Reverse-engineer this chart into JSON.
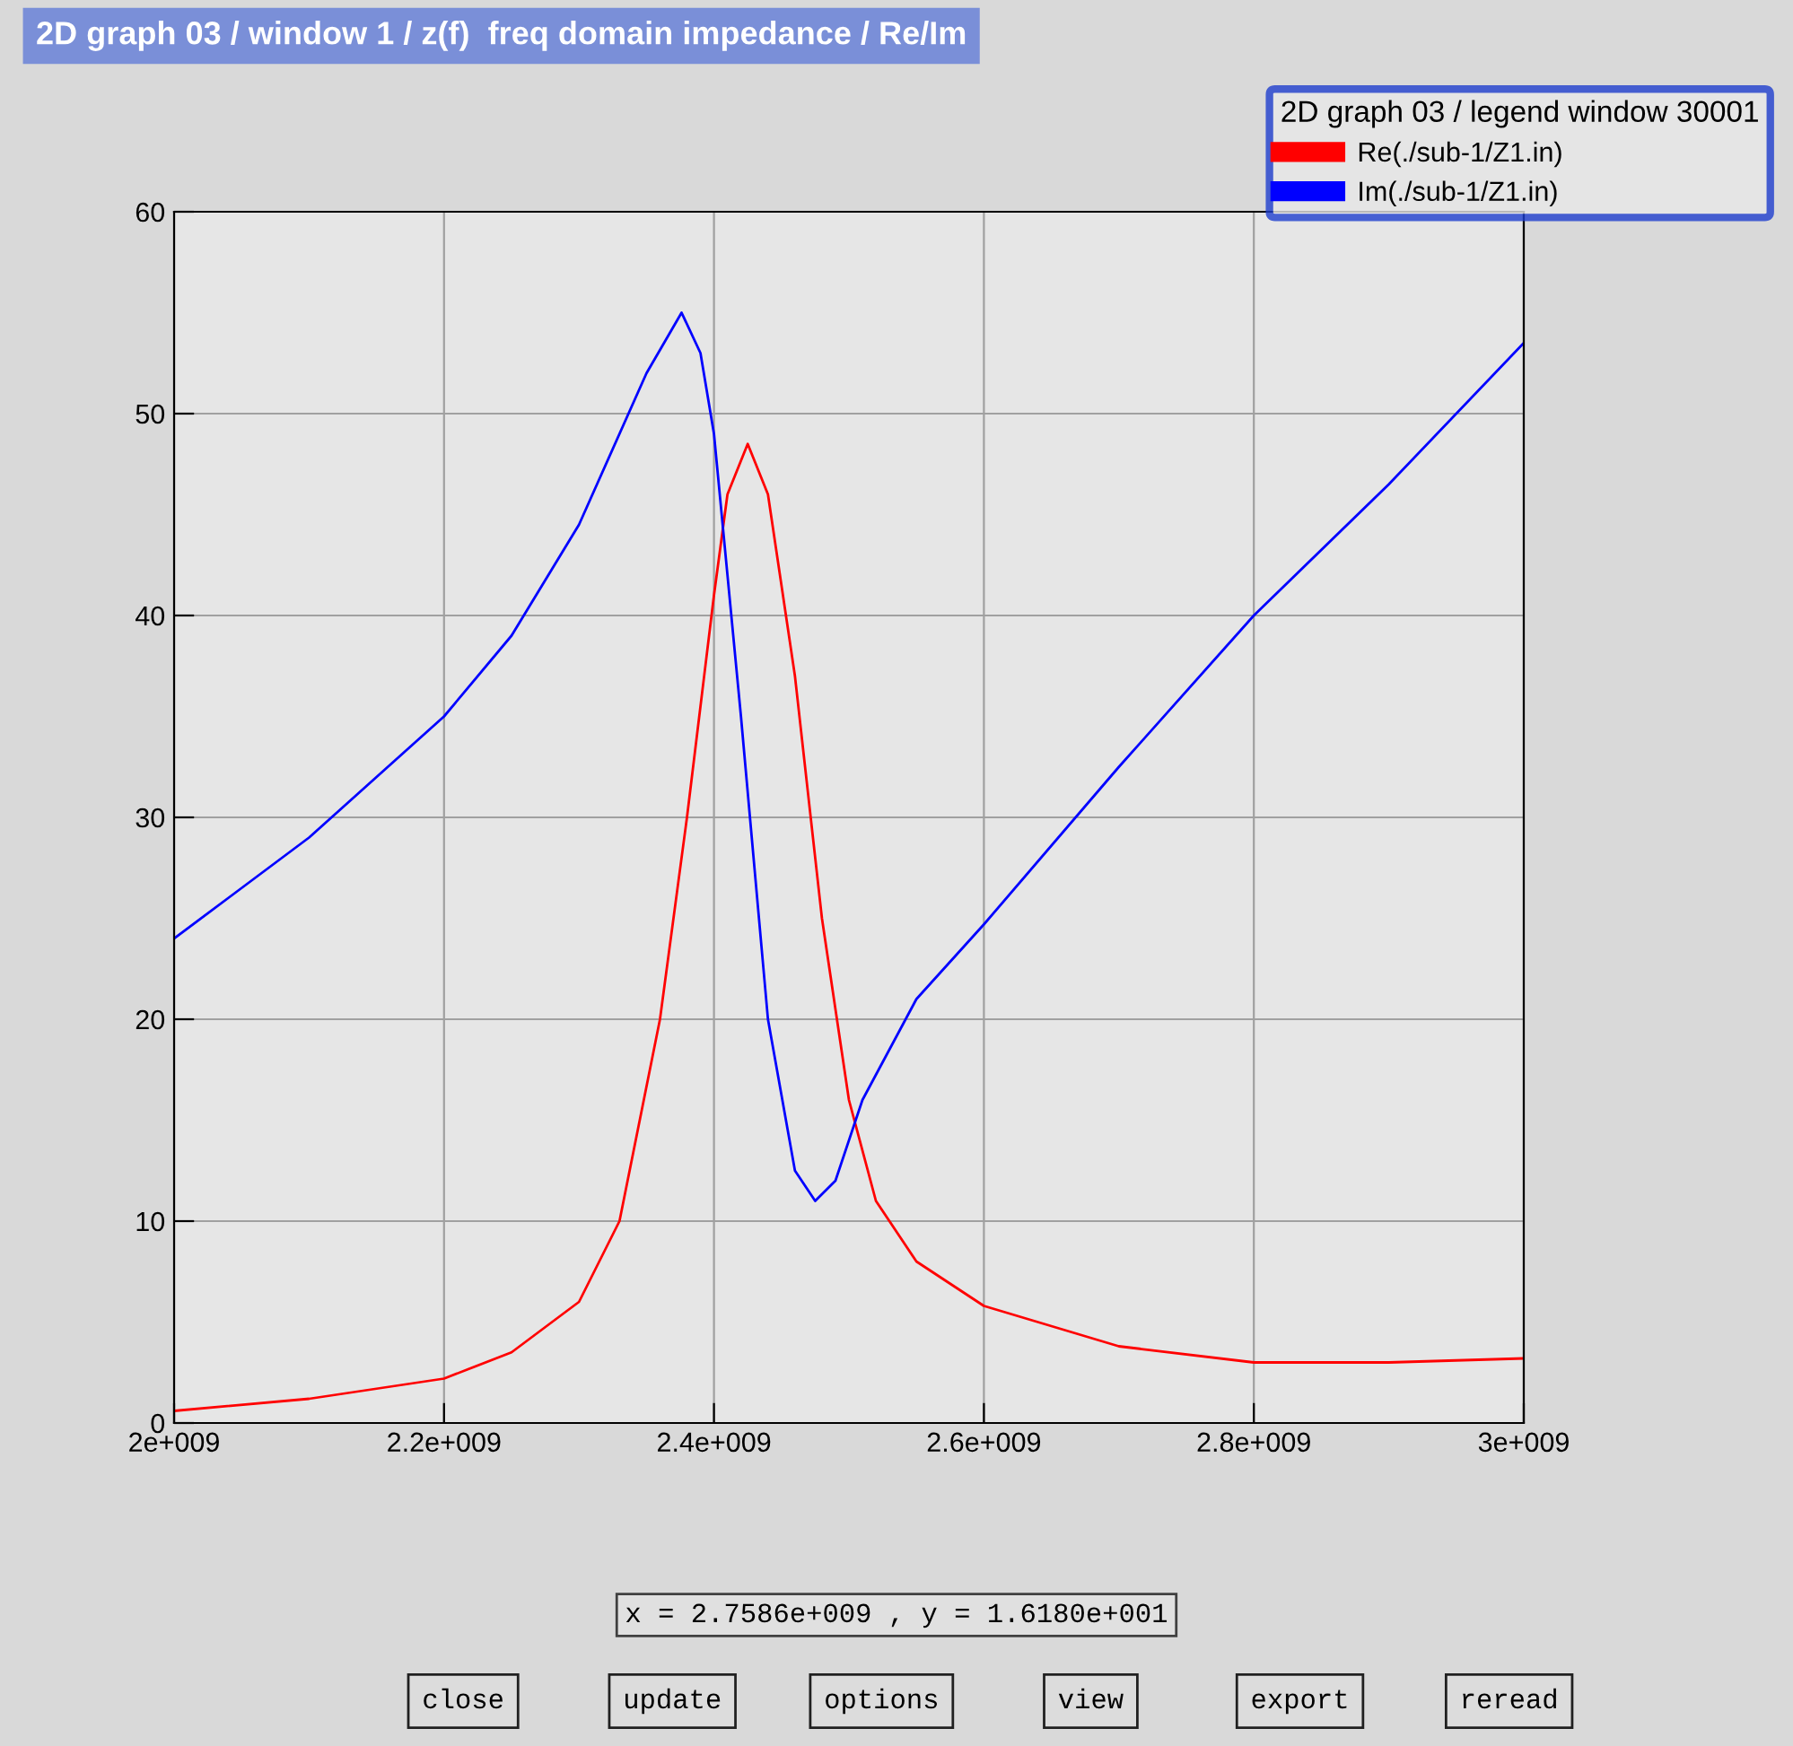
{
  "chart_data": {
    "type": "line",
    "title": "2D graph 03 / window 1 / z(f)  freq domain impedance / Re/Im",
    "legend_title": "2D graph 03 / legend window 30001",
    "series": [
      {
        "name": "Re(./sub-1/Z1.in)",
        "color": "#ff0000",
        "x": [
          2000000000.0,
          2100000000.0,
          2200000000.0,
          2250000000.0,
          2300000000.0,
          2330000000.0,
          2360000000.0,
          2380000000.0,
          2400000000.0,
          2410000000.0,
          2425000000.0,
          2440000000.0,
          2460000000.0,
          2480000000.0,
          2500000000.0,
          2520000000.0,
          2550000000.0,
          2600000000.0,
          2700000000.0,
          2800000000.0,
          2900000000.0,
          3000000000.0
        ],
        "values": [
          0.6,
          1.2,
          2.2,
          3.5,
          6,
          10,
          20,
          30,
          41,
          46,
          48.5,
          46,
          37,
          25,
          16,
          11,
          8,
          5.8,
          3.8,
          3.0,
          3.0,
          3.2
        ]
      },
      {
        "name": "Im(./sub-1/Z1.in)",
        "color": "#0000ff",
        "x": [
          2000000000.0,
          2100000000.0,
          2200000000.0,
          2250000000.0,
          2300000000.0,
          2350000000.0,
          2376000000.0,
          2390000000.0,
          2400000000.0,
          2420000000.0,
          2440000000.0,
          2460000000.0,
          2475000000.0,
          2490000000.0,
          2510000000.0,
          2550000000.0,
          2600000000.0,
          2700000000.0,
          2800000000.0,
          2900000000.0,
          3000000000.0
        ],
        "values": [
          24,
          29,
          35,
          39,
          44.5,
          52,
          55,
          53,
          49,
          35,
          20,
          12.5,
          11,
          12,
          16,
          21,
          24.7,
          32.5,
          40,
          46.5,
          53.5
        ]
      }
    ],
    "xlim": [
      2000000000.0,
      3000000000.0
    ],
    "xticks": [
      {
        "value": 2000000000.0,
        "label": "2e+009"
      },
      {
        "value": 2200000000.0,
        "label": "2.2e+009"
      },
      {
        "value": 2400000000.0,
        "label": "2.4e+009"
      },
      {
        "value": 2600000000.0,
        "label": "2.6e+009"
      },
      {
        "value": 2800000000.0,
        "label": "2.8e+009"
      },
      {
        "value": 3000000000.0,
        "label": "3e+009"
      }
    ],
    "ylim": [
      0,
      60
    ],
    "yticks": [
      0,
      10,
      20,
      30,
      40,
      50,
      60
    ],
    "grid": true,
    "legend": "top right",
    "line_style": "solid",
    "marker": "none",
    "annotations": [
      "x = 2.7586e+009 , y = 1.6180e+001",
      "close",
      "update",
      "options",
      "view",
      "export",
      "reread"
    ]
  }
}
